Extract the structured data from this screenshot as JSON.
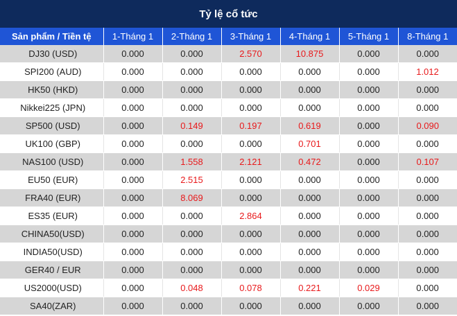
{
  "title": "Tỷ lệ cổ tức",
  "columns": [
    "Sản phẩm / Tiền tệ",
    "1-Tháng 1",
    "2-Tháng 1",
    "3-Tháng 1",
    "4-Tháng 1",
    "5-Tháng 1",
    "8-Tháng 1"
  ],
  "colors": {
    "title_bg": "#0e2a5c",
    "header_bg": "#1f55d6",
    "stripe": "#d6d6d6",
    "positive": "#e8191b"
  },
  "rows": [
    {
      "product": "DJ30 (USD)",
      "values": [
        "0.000",
        "0.000",
        "2.570",
        "10.875",
        "0.000",
        "0.000"
      ]
    },
    {
      "product": "SPI200 (AUD)",
      "values": [
        "0.000",
        "0.000",
        "0.000",
        "0.000",
        "0.000",
        "1.012"
      ]
    },
    {
      "product": "HK50 (HKD)",
      "values": [
        "0.000",
        "0.000",
        "0.000",
        "0.000",
        "0.000",
        "0.000"
      ]
    },
    {
      "product": "Nikkei225 (JPN)",
      "values": [
        "0.000",
        "0.000",
        "0.000",
        "0.000",
        "0.000",
        "0.000"
      ]
    },
    {
      "product": "SP500 (USD)",
      "values": [
        "0.000",
        "0.149",
        "0.197",
        "0.619",
        "0.000",
        "0.090"
      ]
    },
    {
      "product": "UK100 (GBP)",
      "values": [
        "0.000",
        "0.000",
        "0.000",
        "0.701",
        "0.000",
        "0.000"
      ]
    },
    {
      "product": "NAS100 (USD)",
      "values": [
        "0.000",
        "1.558",
        "2.121",
        "0.472",
        "0.000",
        "0.107"
      ]
    },
    {
      "product": "EU50 (EUR)",
      "values": [
        "0.000",
        "2.515",
        "0.000",
        "0.000",
        "0.000",
        "0.000"
      ]
    },
    {
      "product": "FRA40 (EUR)",
      "values": [
        "0.000",
        "8.069",
        "0.000",
        "0.000",
        "0.000",
        "0.000"
      ]
    },
    {
      "product": "ES35 (EUR)",
      "values": [
        "0.000",
        "0.000",
        "2.864",
        "0.000",
        "0.000",
        "0.000"
      ]
    },
    {
      "product": "CHINA50(USD)",
      "values": [
        "0.000",
        "0.000",
        "0.000",
        "0.000",
        "0.000",
        "0.000"
      ]
    },
    {
      "product": "INDIA50(USD)",
      "values": [
        "0.000",
        "0.000",
        "0.000",
        "0.000",
        "0.000",
        "0.000"
      ]
    },
    {
      "product": "GER40 / EUR",
      "values": [
        "0.000",
        "0.000",
        "0.000",
        "0.000",
        "0.000",
        "0.000"
      ]
    },
    {
      "product": "US2000(USD)",
      "values": [
        "0.000",
        "0.048",
        "0.078",
        "0.221",
        "0.029",
        "0.000"
      ]
    },
    {
      "product": "SA40(ZAR)",
      "values": [
        "0.000",
        "0.000",
        "0.000",
        "0.000",
        "0.000",
        "0.000"
      ]
    }
  ]
}
